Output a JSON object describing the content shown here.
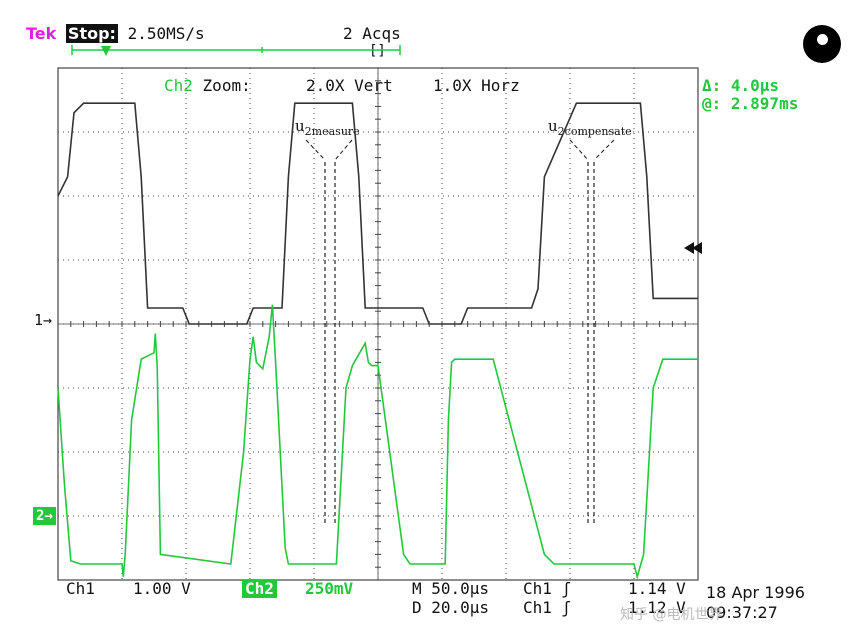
{
  "header": {
    "brand": "Tek",
    "run_state": "Stop:",
    "sample_rate": "2.50MS/s",
    "acquisitions": "2 Acqs",
    "trigger_bracket": "[]"
  },
  "zoom_bar": {
    "channel": "Ch2",
    "zoom_text": "Zoom:",
    "vert": "2.0X Vert",
    "horz": "1.0X Horz"
  },
  "cursor_readout": {
    "delta": "Δ: 4.0μs",
    "at": "@: 2.897ms"
  },
  "annotations": {
    "measure_base": "u",
    "measure_sub": "2measure",
    "compensate_base": "u",
    "compensate_sub": "2compensate"
  },
  "channel_markers": {
    "ch1": "1→",
    "ch2": "2→"
  },
  "footer": {
    "ch1_label": "Ch1",
    "ch1_scale": "1.00 V",
    "ch2_label": "Ch2",
    "ch2_scale": "250mV",
    "main_timebase": "M 50.0μs",
    "trig1_label": "Ch1 ʃ",
    "trig1_value": "1.14 V",
    "delay": "D 20.0μs",
    "trig2_label": "Ch1 ʃ",
    "trig2_value": "1.12 V",
    "date": "18 Apr 1996",
    "time": "09:37:27"
  },
  "watermark": "知乎 @电机世界",
  "colors": {
    "ch1": "#333333",
    "ch2": "#22c83c",
    "grid": "#444444"
  },
  "chart_data": {
    "type": "line",
    "grid": true,
    "divisions": {
      "x": 10,
      "y": 8
    },
    "series": [
      {
        "name": "Ch1",
        "unit": "div",
        "x": [
          0,
          0.15,
          0.25,
          0.4,
          1.2,
          1.3,
          1.4,
          1.95,
          2.05,
          2.15,
          2.95,
          3.05,
          3.15,
          3.5,
          3.6,
          3.7,
          4.6,
          4.7,
          4.8,
          5.7,
          5.8,
          5.9,
          6.0,
          6.3,
          6.4,
          6.5,
          7.4,
          7.5,
          7.6,
          8.1,
          8.2,
          8.3,
          9.1,
          9.2,
          9.3,
          10
        ],
        "y": [
          2.0,
          2.3,
          3.3,
          3.45,
          3.45,
          2.3,
          0.25,
          0.25,
          0.0,
          0.0,
          0.0,
          0.25,
          0.25,
          0.25,
          2.3,
          3.45,
          3.45,
          2.3,
          0.25,
          0.25,
          0.0,
          0.0,
          0.0,
          0.0,
          0.25,
          0.25,
          0.25,
          0.55,
          2.3,
          3.45,
          3.45,
          3.45,
          3.45,
          2.3,
          0.4,
          0.4
        ]
      },
      {
        "name": "Ch2",
        "unit": "div",
        "x": [
          0,
          0.1,
          0.2,
          0.35,
          1.0,
          1.02,
          1.05,
          1.15,
          1.3,
          1.5,
          1.52,
          1.55,
          1.6,
          2.7,
          2.9,
          3.0,
          3.05,
          3.1,
          3.2,
          3.3,
          3.35,
          3.4,
          3.55,
          3.6,
          4.35,
          4.5,
          4.6,
          4.8,
          4.85,
          4.9,
          5.0,
          5.4,
          5.5,
          6.05,
          6.1,
          6.15,
          6.2,
          6.6,
          6.8,
          7.6,
          7.75,
          7.85,
          7.9,
          7.95,
          8.0,
          9.0,
          9.05,
          9.15,
          9.3,
          9.45,
          10
        ],
        "y": [
          -1.0,
          -2.5,
          -3.7,
          -3.75,
          -3.75,
          -3.95,
          -3.6,
          -1.5,
          -0.55,
          -0.45,
          -0.15,
          -0.65,
          -3.6,
          -3.75,
          -2.0,
          -0.55,
          -0.2,
          -0.6,
          -0.7,
          -0.2,
          0.3,
          -0.6,
          -3.5,
          -3.75,
          -3.75,
          -1.0,
          -0.65,
          -0.3,
          -0.6,
          -0.65,
          -0.65,
          -3.6,
          -3.75,
          -3.75,
          -1.5,
          -0.6,
          -0.55,
          -0.55,
          -0.55,
          -3.6,
          -3.75,
          -3.75,
          -3.75,
          -3.75,
          -3.75,
          -3.75,
          -3.95,
          -3.6,
          -1.0,
          -0.55,
          -0.55
        ]
      }
    ],
    "ylim": [
      -4,
      4
    ],
    "xlim": [
      0,
      10
    ]
  }
}
